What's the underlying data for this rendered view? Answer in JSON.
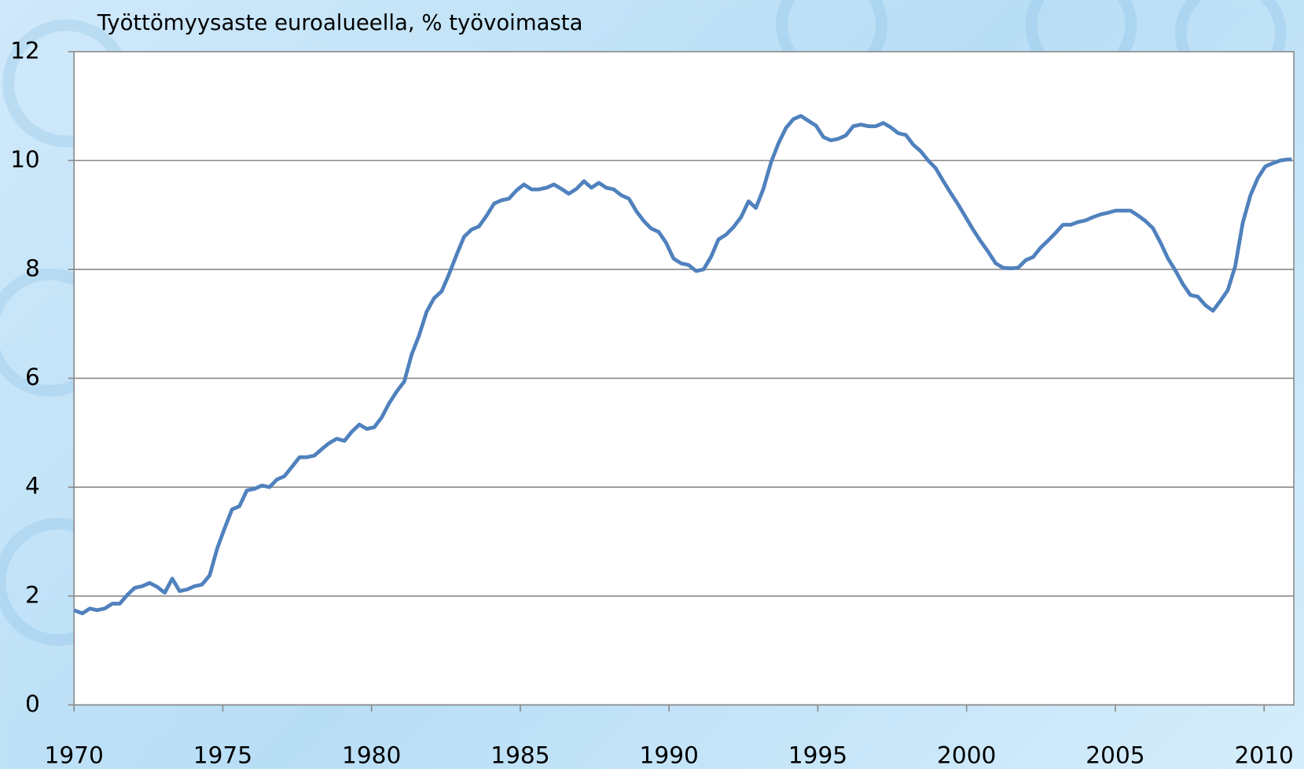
{
  "chart_data": {
    "type": "line",
    "title": "Työttömyysaste euroalueella, % työvoimasta",
    "x": [
      1970.0,
      1970.28,
      1970.53,
      1970.78,
      1971.03,
      1971.29,
      1971.54,
      1971.79,
      1972.04,
      1972.29,
      1972.54,
      1972.79,
      1973.05,
      1973.3,
      1973.55,
      1973.8,
      1974.05,
      1974.3,
      1974.56,
      1974.81,
      1975.06,
      1975.31,
      1975.56,
      1975.81,
      1976.07,
      1976.32,
      1976.57,
      1976.82,
      1977.07,
      1977.32,
      1977.58,
      1977.83,
      1978.08,
      1978.33,
      1978.58,
      1978.83,
      1979.09,
      1979.34,
      1979.59,
      1979.84,
      1980.09,
      1980.34,
      1980.59,
      1980.85,
      1981.1,
      1981.35,
      1981.6,
      1981.85,
      1982.1,
      1982.36,
      1982.61,
      1982.86,
      1983.11,
      1983.36,
      1983.61,
      1983.87,
      1984.12,
      1984.37,
      1984.62,
      1984.87,
      1985.12,
      1985.38,
      1985.63,
      1985.88,
      1986.13,
      1986.38,
      1986.63,
      1986.89,
      1987.14,
      1987.39,
      1987.64,
      1987.89,
      1988.14,
      1988.4,
      1988.65,
      1988.9,
      1989.15,
      1989.4,
      1989.65,
      1989.9,
      1990.15,
      1990.41,
      1990.66,
      1990.91,
      1991.16,
      1991.41,
      1991.66,
      1991.92,
      1992.17,
      1992.42,
      1992.67,
      1992.92,
      1993.17,
      1993.43,
      1993.68,
      1993.93,
      1994.18,
      1994.43,
      1994.68,
      1994.94,
      1995.19,
      1995.44,
      1995.69,
      1995.94,
      1996.19,
      1996.45,
      1996.7,
      1996.95,
      1997.2,
      1997.45,
      1997.71,
      1997.96,
      1998.21,
      1998.46,
      1998.71,
      1998.96,
      1999.22,
      1999.47,
      1999.72,
      1999.97,
      2000.22,
      2000.47,
      2000.73,
      2000.98,
      2001.23,
      2001.48,
      2001.73,
      2001.99,
      2002.24,
      2002.49,
      2002.74,
      2002.99,
      2003.24,
      2003.5,
      2003.75,
      2004.0,
      2004.25,
      2004.5,
      2004.75,
      2005.01,
      2005.26,
      2005.51,
      2005.76,
      2006.01,
      2006.26,
      2006.52,
      2006.77,
      2007.02,
      2007.27,
      2007.52,
      2007.77,
      2008.03,
      2008.28,
      2008.53,
      2008.78,
      2009.03,
      2009.28,
      2009.54,
      2009.79,
      2010.04,
      2010.29,
      2010.54,
      2010.79,
      2010.93
    ],
    "values": [
      1.74,
      1.68,
      1.77,
      1.74,
      1.77,
      1.86,
      1.86,
      2.02,
      2.15,
      2.18,
      2.24,
      2.17,
      2.06,
      2.32,
      2.09,
      2.12,
      2.18,
      2.21,
      2.38,
      2.87,
      3.24,
      3.59,
      3.65,
      3.94,
      3.97,
      4.03,
      4.0,
      4.14,
      4.2,
      4.37,
      4.55,
      4.55,
      4.58,
      4.7,
      4.81,
      4.89,
      4.85,
      5.02,
      5.15,
      5.07,
      5.1,
      5.28,
      5.54,
      5.76,
      5.94,
      6.44,
      6.79,
      7.22,
      7.47,
      7.6,
      7.92,
      8.27,
      8.6,
      8.73,
      8.79,
      8.99,
      9.21,
      9.27,
      9.3,
      9.45,
      9.56,
      9.47,
      9.47,
      9.5,
      9.56,
      9.48,
      9.39,
      9.48,
      9.62,
      9.5,
      9.59,
      9.5,
      9.47,
      9.36,
      9.3,
      9.07,
      8.89,
      8.75,
      8.69,
      8.49,
      8.2,
      8.11,
      8.08,
      7.97,
      8.0,
      8.23,
      8.55,
      8.64,
      8.78,
      8.96,
      9.25,
      9.13,
      9.48,
      9.97,
      10.32,
      10.6,
      10.76,
      10.82,
      10.73,
      10.64,
      10.43,
      10.37,
      10.4,
      10.46,
      10.63,
      10.66,
      10.63,
      10.63,
      10.69,
      10.61,
      10.5,
      10.47,
      10.29,
      10.17,
      10.0,
      9.86,
      9.62,
      9.4,
      9.19,
      8.96,
      8.73,
      8.52,
      8.32,
      8.11,
      8.03,
      8.02,
      8.03,
      8.17,
      8.23,
      8.4,
      8.53,
      8.67,
      8.82,
      8.82,
      8.87,
      8.9,
      8.96,
      9.01,
      9.04,
      9.08,
      9.08,
      9.08,
      8.99,
      8.89,
      8.76,
      8.49,
      8.2,
      7.98,
      7.73,
      7.53,
      7.5,
      7.34,
      7.24,
      7.42,
      7.62,
      8.06,
      8.85,
      9.36,
      9.68,
      9.89,
      9.95,
      10.0,
      10.02,
      10.02
    ],
    "color": "#4f81bd",
    "xlim": [
      1970,
      2011
    ],
    "xticks": [
      1970,
      1975,
      1980,
      1985,
      1990,
      1995,
      2000,
      2005,
      2010
    ],
    "ylim": [
      0,
      12
    ],
    "yticks": [
      0,
      2,
      4,
      6,
      8,
      10,
      12
    ],
    "grid": true
  }
}
